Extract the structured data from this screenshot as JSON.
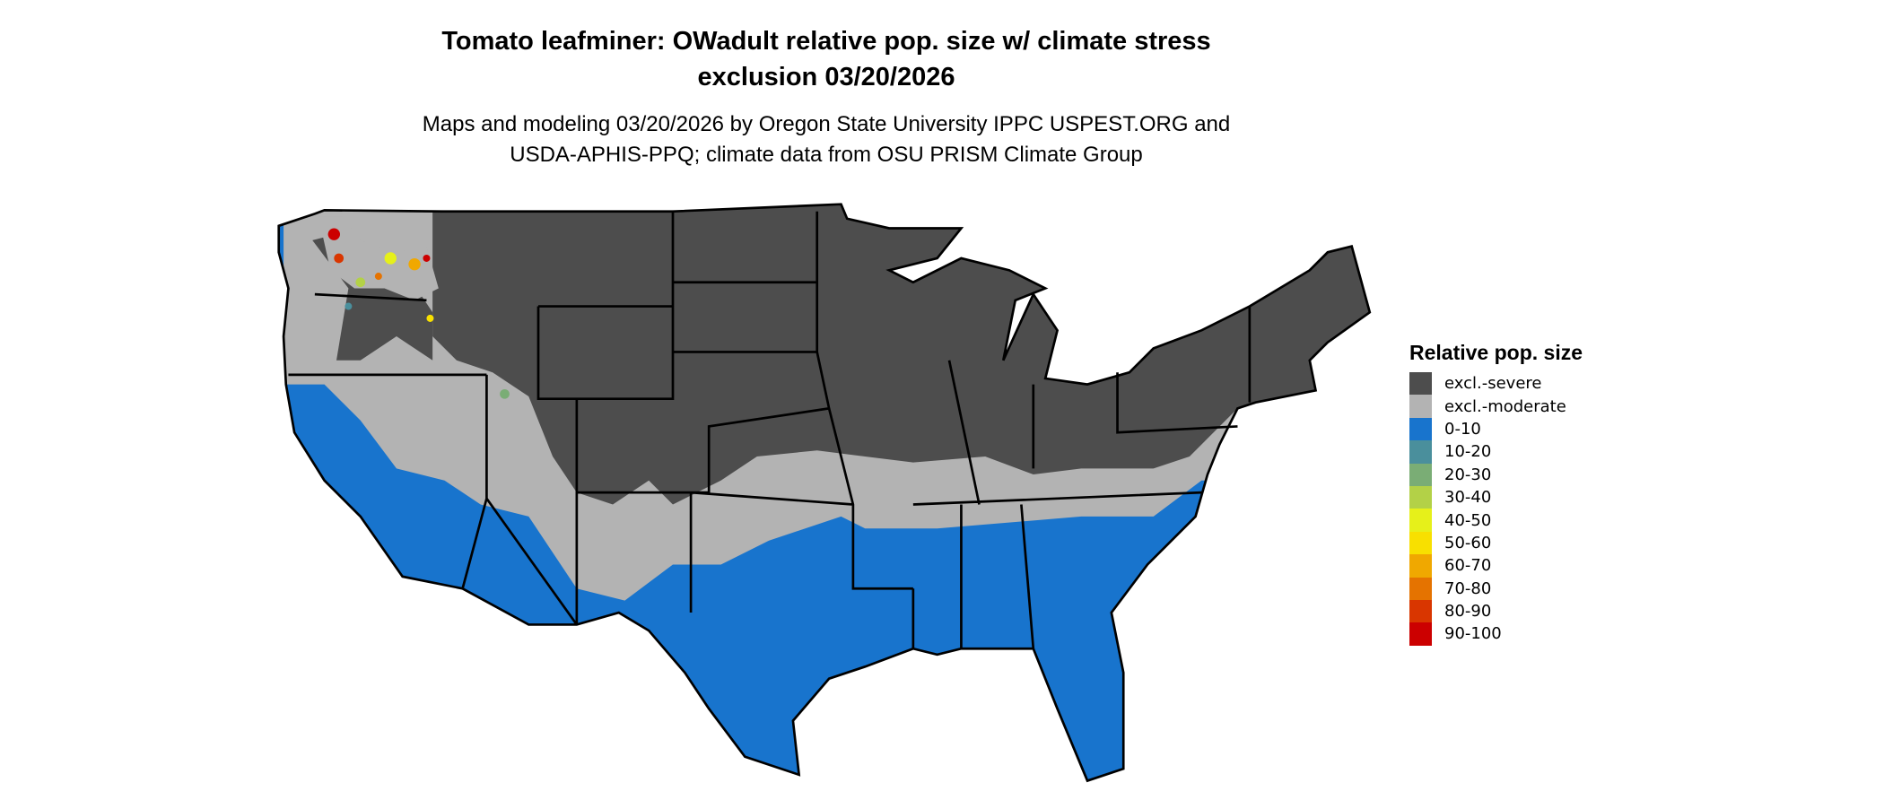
{
  "title_line1": "Tomato leafminer: OWadult relative pop. size w/ climate stress",
  "title_line2": "exclusion 03/20/2026",
  "subtitle_line1": "Maps and modeling 03/20/2026 by Oregon State University IPPC USPEST.ORG and",
  "subtitle_line2": "USDA-APHIS-PPQ; climate data from OSU PRISM Climate Group",
  "legend": {
    "title": "Relative pop. size",
    "items": [
      {
        "label": "excl.-severe",
        "color": "#4d4d4d"
      },
      {
        "label": "excl.-moderate",
        "color": "#b3b3b3"
      },
      {
        "label": "0-10",
        "color": "#1874cd"
      },
      {
        "label": "10-20",
        "color": "#4a8f9c"
      },
      {
        "label": "20-30",
        "color": "#7aad75"
      },
      {
        "label": "30-40",
        "color": "#b3d147"
      },
      {
        "label": "40-50",
        "color": "#e6f01a"
      },
      {
        "label": "50-60",
        "color": "#f8e000"
      },
      {
        "label": "60-70",
        "color": "#f0a800"
      },
      {
        "label": "70-80",
        "color": "#e57300"
      },
      {
        "label": "80-90",
        "color": "#d93600"
      },
      {
        "label": "90-100",
        "color": "#cc0000"
      }
    ]
  }
}
